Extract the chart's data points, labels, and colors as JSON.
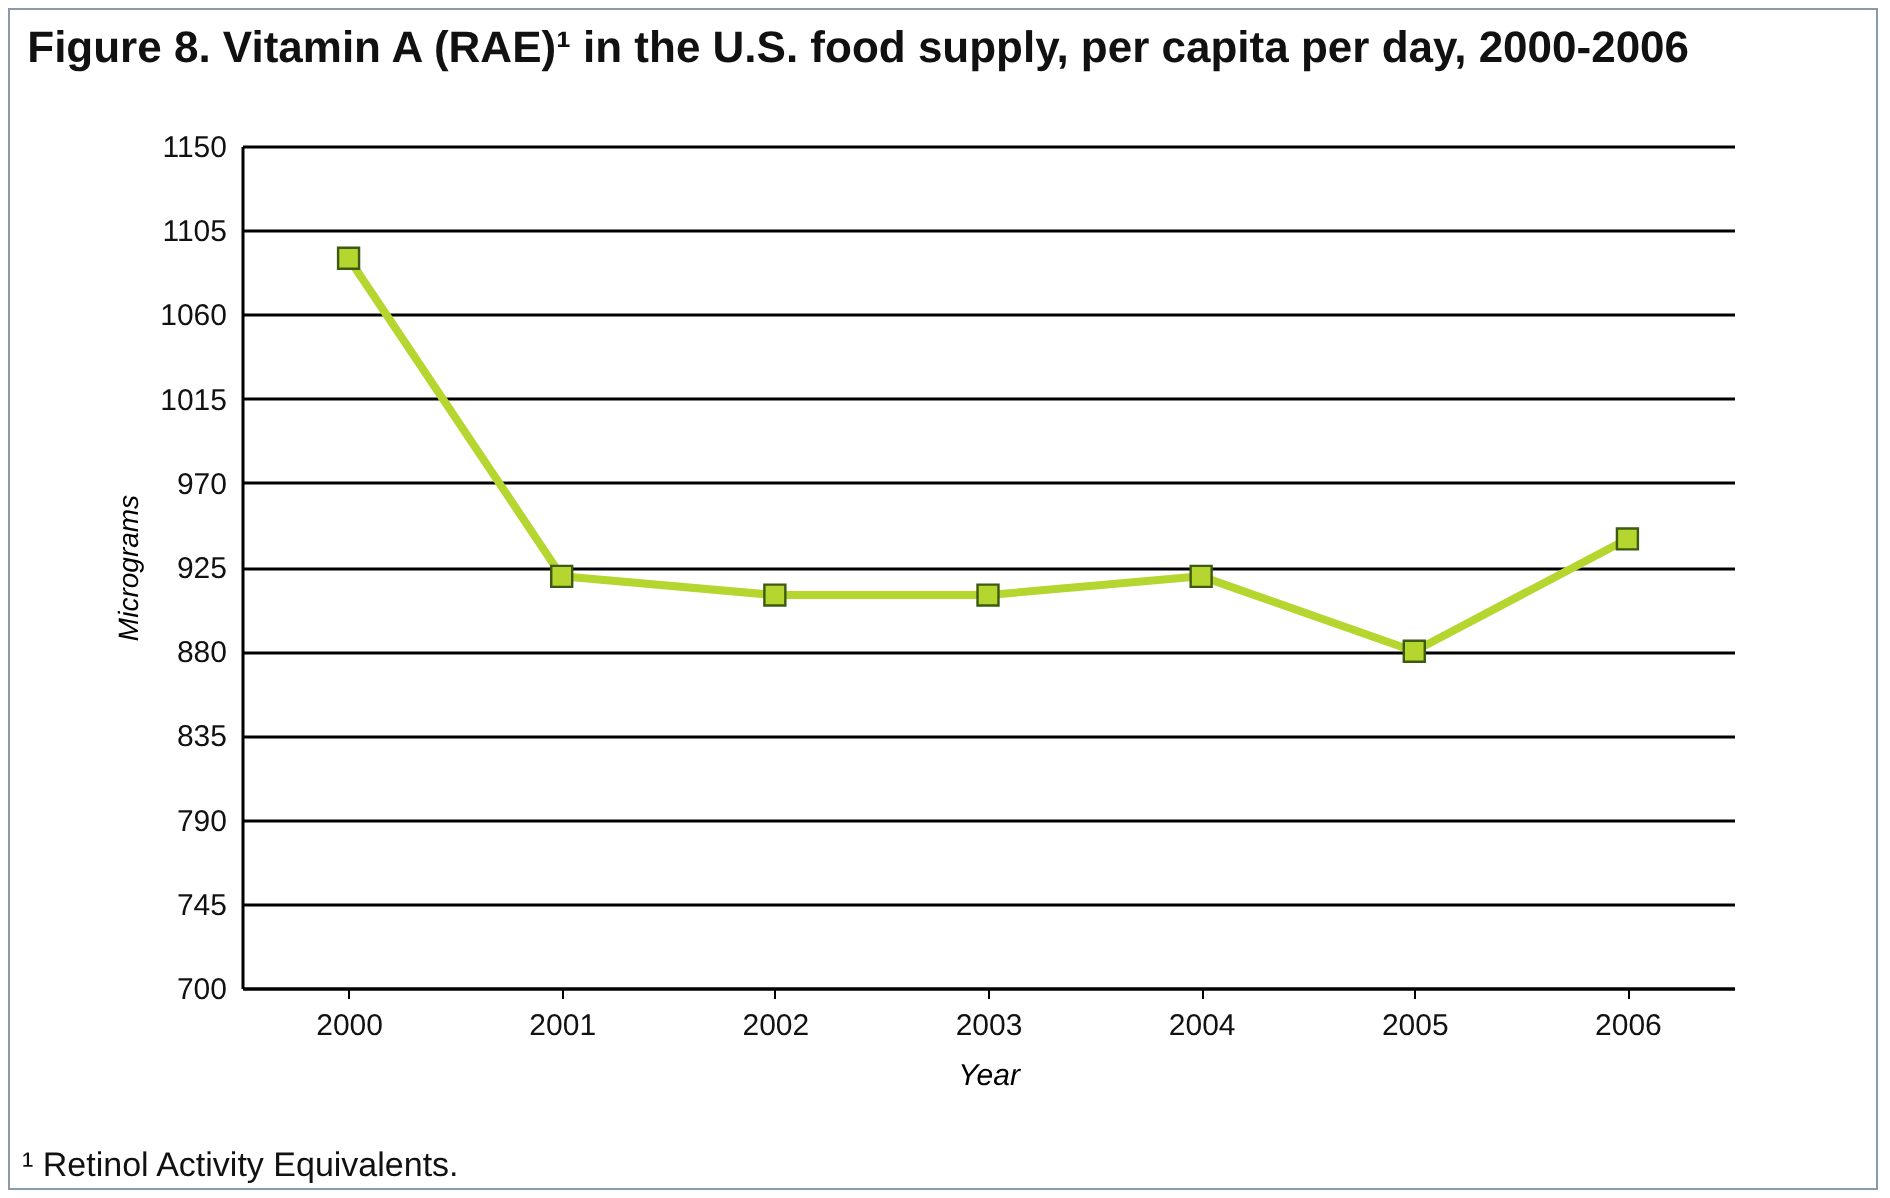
{
  "chart_data": {
    "type": "line",
    "title": "Figure 8. Vitamin A (RAE)¹ in the U.S. food supply, per capita per day, 2000-2006",
    "xlabel": "Year",
    "ylabel": "Micrograms",
    "categories": [
      "2000",
      "2001",
      "2002",
      "2003",
      "2004",
      "2005",
      "2006"
    ],
    "series": [
      {
        "color": "#b5d62f",
        "values": [
          1090,
          920,
          910,
          910,
          920,
          880,
          940
        ]
      }
    ],
    "ylim": [
      700,
      1150
    ],
    "yticks": [
      700,
      745,
      790,
      835,
      880,
      925,
      970,
      1015,
      1060,
      1105,
      1150
    ],
    "grid": "y",
    "marker": "square",
    "line_style": "solid",
    "annotations": [
      "¹ Retinol Activity Equivalents."
    ]
  }
}
